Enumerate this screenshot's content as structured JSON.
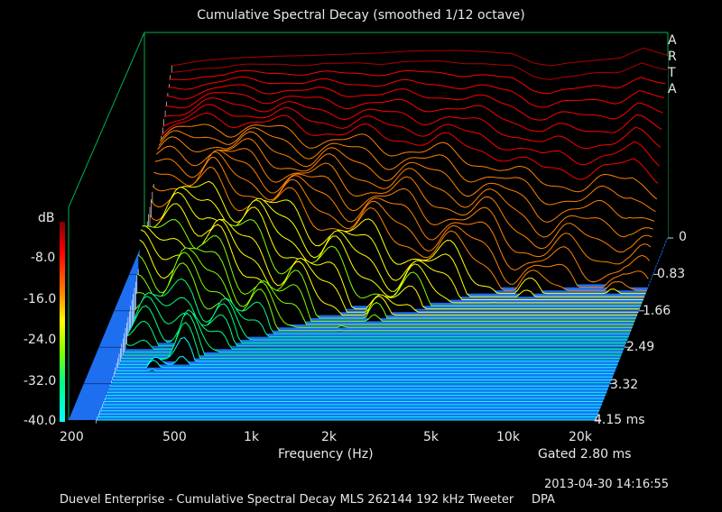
{
  "chart_data": {
    "type": "waterfall",
    "title": "Cumulative Spectral Decay (smoothed 1/12 octave)",
    "xlabel": "Frequency (Hz)",
    "ylabel": "dB",
    "zlabel": "",
    "x_scale": "log",
    "x_ticks": [
      {
        "label": "200",
        "value": 200
      },
      {
        "label": "500",
        "value": 500
      },
      {
        "label": "1k",
        "value": 1000
      },
      {
        "label": "2k",
        "value": 2000
      },
      {
        "label": "5k",
        "value": 5000
      },
      {
        "label": "10k",
        "value": 10000
      },
      {
        "label": "20k",
        "value": 20000
      }
    ],
    "xlim": [
      180,
      20000
    ],
    "y_ticks": [
      "-8.0",
      "-16.0",
      "-24.0",
      "-32.0",
      "-40.0"
    ],
    "ylim": [
      -40,
      0
    ],
    "time_ticks": [
      "0",
      "0.83",
      "1.66",
      "2.49",
      "3.32",
      "4.15 ms"
    ],
    "time_range_ms": [
      0,
      4.15
    ],
    "gate_ms": 2.8,
    "colormap": [
      "#00ffff",
      "#00ff80",
      "#80ff00",
      "#ffff00",
      "#ff8000",
      "#ff0000",
      "#800000"
    ],
    "floor_color": "#1e6ef0",
    "frame_color": "#00b050",
    "slices": 60,
    "initial_response_db": [
      {
        "f": 230,
        "db": -6.5
      },
      {
        "f": 300,
        "db": -5.5
      },
      {
        "f": 400,
        "db": -5.0
      },
      {
        "f": 600,
        "db": -4.6
      },
      {
        "f": 800,
        "db": -4.5
      },
      {
        "f": 1000,
        "db": -4.3
      },
      {
        "f": 1500,
        "db": -4.0
      },
      {
        "f": 2000,
        "db": -3.6
      },
      {
        "f": 3000,
        "db": -3.5
      },
      {
        "f": 4000,
        "db": -3.8
      },
      {
        "f": 5000,
        "db": -4.2
      },
      {
        "f": 6000,
        "db": -6.0
      },
      {
        "f": 7000,
        "db": -6.5
      },
      {
        "f": 8000,
        "db": -6.0
      },
      {
        "f": 10000,
        "db": -5.5
      },
      {
        "f": 13000,
        "db": -5.0
      },
      {
        "f": 16000,
        "db": -3.0
      },
      {
        "f": 20000,
        "db": -4.5
      }
    ]
  },
  "labels": {
    "title": "Cumulative Spectral Decay (smoothed 1/12 octave)",
    "gated": "Gated 2.80 ms",
    "timestamp": "2013-04-30  14:16:55",
    "footer": "Duevel Enterprise - Cumulative Spectral Decay MLS 262144 192 kHz Tweeter",
    "footer_right": "DPA",
    "brand": [
      "A",
      "R",
      "T",
      "A"
    ]
  }
}
